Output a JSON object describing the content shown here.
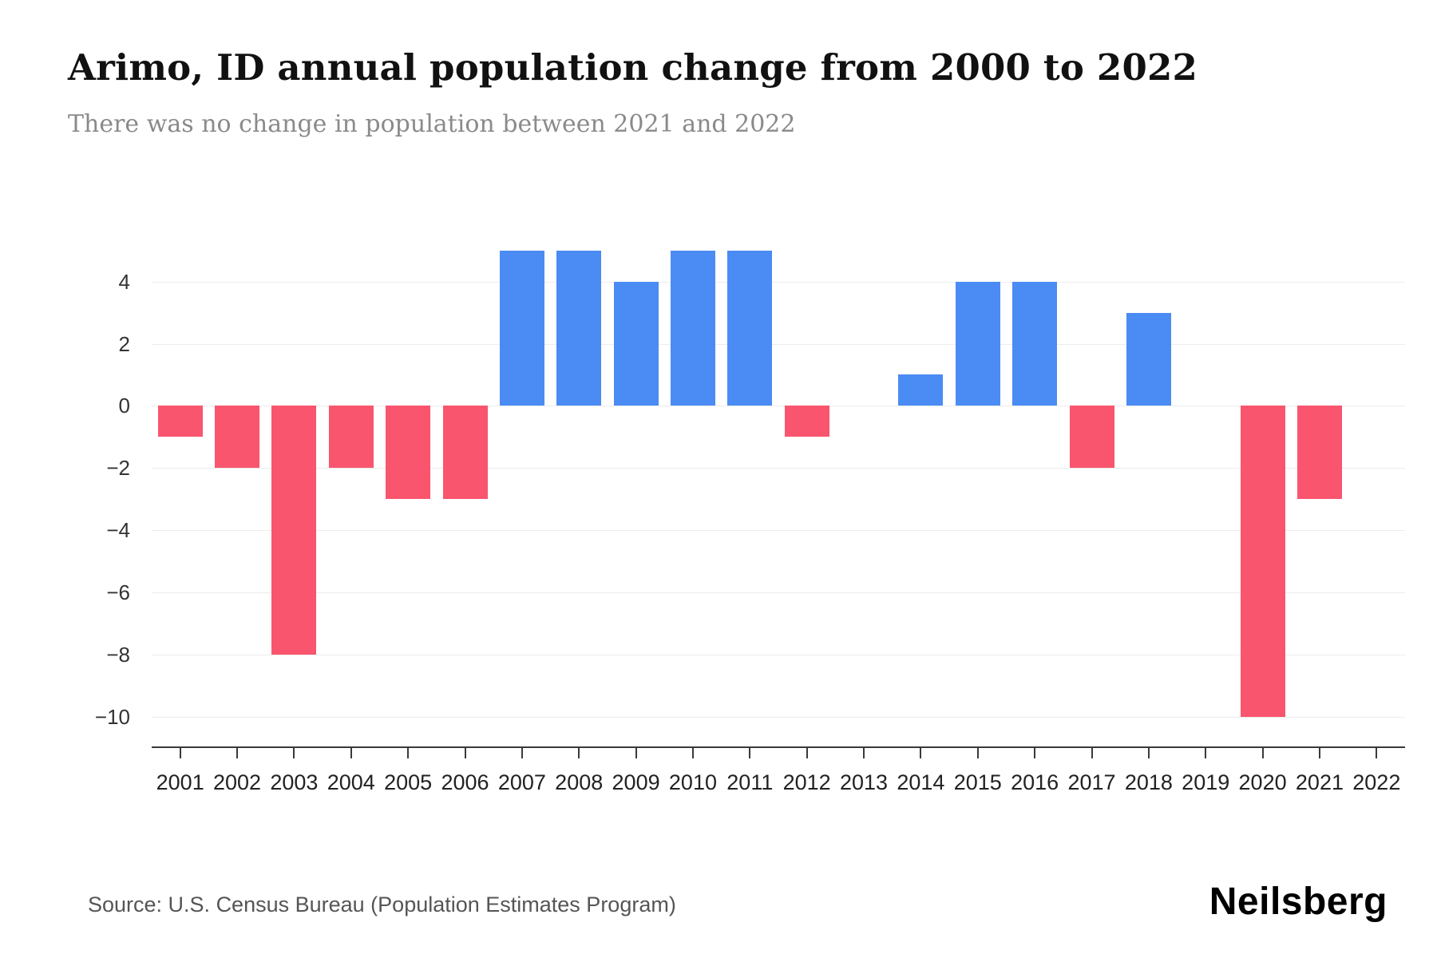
{
  "header": {
    "title": "Arimo, ID annual population change from 2000 to 2022",
    "subtitle": "There was no change in population between 2021 and 2022"
  },
  "footer": {
    "source": "Source: U.S. Census Bureau (Population Estimates Program)",
    "brand": "Neilsberg"
  },
  "chart_data": {
    "type": "bar",
    "title": "Arimo, ID annual population change from 2000 to 2022",
    "subtitle": "There was no change in population between 2021 and 2022",
    "xlabel": "",
    "ylabel": "",
    "categories": [
      "2001",
      "2002",
      "2003",
      "2004",
      "2005",
      "2006",
      "2007",
      "2008",
      "2009",
      "2010",
      "2011",
      "2012",
      "2013",
      "2014",
      "2015",
      "2016",
      "2017",
      "2018",
      "2019",
      "2020",
      "2021",
      "2022"
    ],
    "values": [
      -1,
      -2,
      -8,
      -2,
      -3,
      -3,
      5,
      5,
      4,
      5,
      5,
      -1,
      0,
      1,
      4,
      4,
      -2,
      3,
      0,
      -10,
      -3,
      0
    ],
    "yticks": [
      4,
      2,
      0,
      -2,
      -4,
      -6,
      -8,
      -10
    ],
    "ylim": [
      -10.95,
      5.35
    ],
    "grid": true,
    "legend": false,
    "colors": {
      "positive": "#4b8bf4",
      "negative": "#f9556e"
    }
  }
}
